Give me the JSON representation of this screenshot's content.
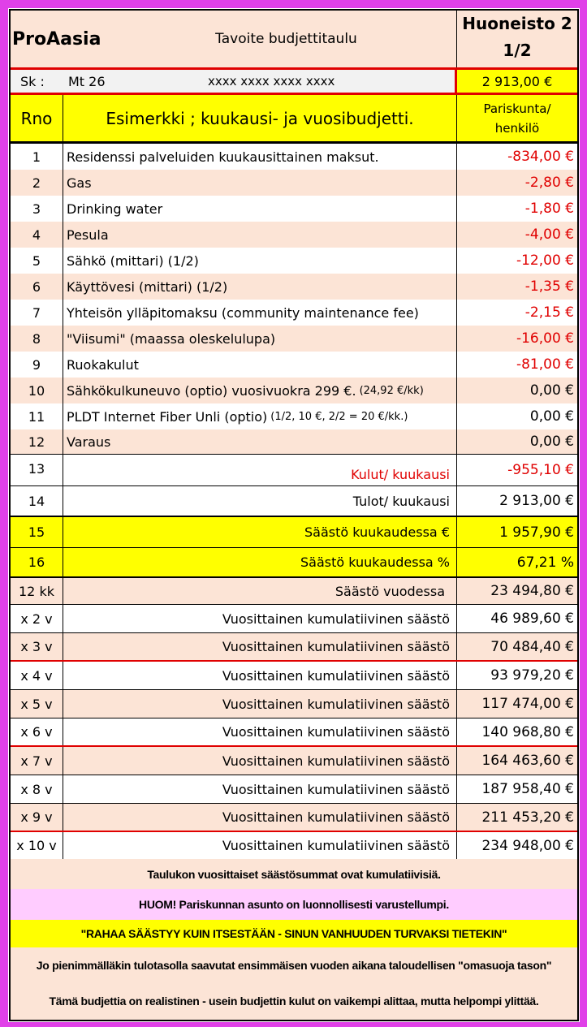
{
  "header": {
    "brand": "ProAasia",
    "title": "Tavoite budjettitaulu",
    "apartment_line1": "Huoneisto 2",
    "apartment_line2": "1/2"
  },
  "info": {
    "sk_label": "Sk :",
    "sk_value": "Mt 26",
    "masked": "xxxx xxxx xxxx xxxx",
    "income": "2 913,00 €"
  },
  "columns": {
    "rno": "Rno",
    "description": "Esimerkki ; kuukausi- ja vuosibudjetti.",
    "value_line1": "Pariskunta/",
    "value_line2": "henkilö"
  },
  "items": [
    {
      "no": "1",
      "label": "Residenssi palveluiden kuukausittainen maksut.",
      "value": "-834,00 €",
      "neg": true
    },
    {
      "no": "2",
      "label": "Gas",
      "value": "-2,80 €",
      "neg": true
    },
    {
      "no": "3",
      "label": "Drinking water",
      "value": "-1,80 €",
      "neg": true
    },
    {
      "no": "4",
      "label": "Pesula",
      "value": "-4,00 €",
      "neg": true
    },
    {
      "no": "5",
      "label": "Sähkö  (mittari) (1/2)",
      "value": "-12,00 €",
      "neg": true
    },
    {
      "no": "6",
      "label": "Käyttövesi (mittari) (1/2)",
      "value": "-1,35 €",
      "neg": true
    },
    {
      "no": "7",
      "label": "Yhteisön ylläpitomaksu (community maintenance fee)",
      "value": "-2,15 €",
      "neg": true
    },
    {
      "no": "8",
      "label": "\"Viisumi\" (maassa oleskelulupa)",
      "value": "-16,00 €",
      "neg": true
    },
    {
      "no": "9",
      "label": "Ruokakulut",
      "value": "-81,00 €",
      "neg": true
    },
    {
      "no": "10",
      "label": "Sähkökulkuneuvo (optio) vuosivuokra 299 €.",
      "note": "(24,92 €/kk)",
      "value": "0,00 €",
      "neg": false
    },
    {
      "no": "11",
      "label": "PLDT Internet Fiber Unli (optio)",
      "note": "(1/2, 10 €, 2/2 = 20 €/kk.)",
      "value": "0,00 €",
      "neg": false
    },
    {
      "no": "12",
      "label": "Varaus",
      "value": "0,00 €",
      "neg": false
    }
  ],
  "totals": [
    {
      "no": "13",
      "label": "Kulut/ kuukausi",
      "value": "-955,10 €",
      "neg": true
    },
    {
      "no": "14",
      "label": "Tulot/ kuukausi",
      "value": "2 913,00 €",
      "neg": false
    },
    {
      "no": "15",
      "label": "Säästö kuukaudessa €",
      "value": "1 957,90 €",
      "neg": false
    },
    {
      "no": "16",
      "label": "Säästö kuukaudessa %",
      "value": "67,21 %",
      "neg": false
    }
  ],
  "yearly": [
    {
      "no": "12 kk",
      "label": "Säästö vuodessa",
      "value": "23 494,80 €"
    },
    {
      "no": "x 2 v",
      "label": "Vuosittainen kumulatiivinen säästö",
      "value": "46 989,60 €"
    },
    {
      "no": "x 3 v",
      "label": "Vuosittainen kumulatiivinen säästö",
      "value": "70 484,40 €"
    },
    {
      "no": "x 4 v",
      "label": "Vuosittainen kumulatiivinen säästö",
      "value": "93 979,20 €"
    },
    {
      "no": "x 5 v",
      "label": "Vuosittainen kumulatiivinen säästö",
      "value": "117 474,00 €"
    },
    {
      "no": "x 6 v",
      "label": "Vuosittainen kumulatiivinen säästö",
      "value": "140 968,80 €"
    },
    {
      "no": "x 7 v",
      "label": "Vuosittainen kumulatiivinen säästö",
      "value": "164 463,60 €"
    },
    {
      "no": "x 8 v",
      "label": "Vuosittainen kumulatiivinen säästö",
      "value": "187 958,40 €"
    },
    {
      "no": "x 9 v",
      "label": "Vuosittainen kumulatiivinen säästö",
      "value": "211 453,20 €"
    },
    {
      "no": "x 10 v",
      "label": "Vuosittainen kumulatiivinen säästö",
      "value": "234 948,00 €"
    }
  ],
  "footer": {
    "note1": "Taulukon vuosittaiset säästösummat ovat kumulatiivisiä.",
    "note2": "HUOM! Pariskunnan asunto on luonnollisesti  varustellumpi.",
    "slogan": "\"RAHAA SÄÄSTYY KUIN ITSESTÄÄN - SINUN VANHUUDEN TURVAKSI TIETEKIN\"",
    "note3": "Jo pienimmälläkin tulotasolla saavutat ensimmäisen vuoden aikana taloudellisen \"omasuoja tason\"",
    "note4": "Tämä budjettia on realistinen - usein budjettin kulut on vaikempi alittaa, mutta helpompi ylittää."
  },
  "colors": {
    "frame": "#e040e8",
    "negative": "#e00000",
    "highlight": "#ffff00",
    "row_alt": "#fce4d6",
    "note_pink": "#ffccff"
  }
}
